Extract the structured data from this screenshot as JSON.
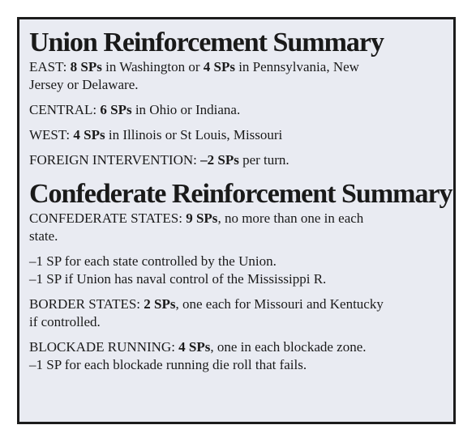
{
  "union": {
    "title": "Union Reinforcement Summary",
    "east": {
      "label": "EAST: ",
      "sp1": "8 SPs",
      "mid": " in Washington or ",
      "sp2": "4 SPs",
      "tail": " in Pennsylvania, New",
      "tail2": "Jersey or Delaware."
    },
    "central": {
      "label": "CENTRAL: ",
      "sp": "6 SPs",
      "tail": " in Ohio or Indiana."
    },
    "west": {
      "label": "WEST: ",
      "sp": "4 SPs",
      "tail": " in Illinois or St Louis, Missouri"
    },
    "foreign": {
      "label": "FOREIGN INTERVENTION: ",
      "sp": "–2 SPs",
      "tail": " per turn."
    }
  },
  "confederate": {
    "title": "Confederate Reinforcement Summary",
    "states": {
      "label": "CONFEDERATE STATES: ",
      "sp": "9 SPs",
      "tail": ", no more than one in each",
      "tail2": "state."
    },
    "penalty_union": "–1 SP for each state controlled by the Union.",
    "penalty_naval": "–1 SP if Union has naval control of the Mississippi R.",
    "border": {
      "label": "BORDER STATES: ",
      "sp": "2 SPs",
      "tail": ", one each for Missouri and Kentucky",
      "tail2": "if controlled."
    },
    "blockade": {
      "label": "BLOCKADE RUNNING: ",
      "sp": "4 SPs",
      "tail": ", one in each blockade zone."
    },
    "penalty_blockade": "–1 SP for each blockade running die roll that fails."
  }
}
